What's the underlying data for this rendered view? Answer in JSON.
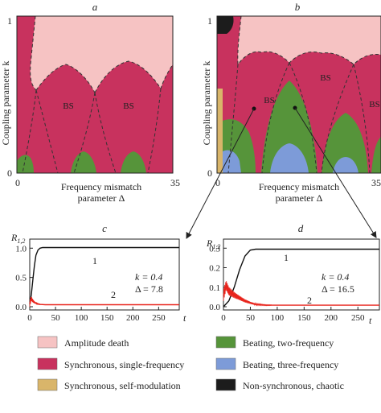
{
  "colors": {
    "amplitude_death": "#f6c3c3",
    "sync_single": "#c8325e",
    "sync_self_mod": "#d9b56a",
    "beating_two": "#56943a",
    "beating_three": "#7d9bd8",
    "non_sync_chaotic": "#1c1c1c",
    "curve_red": "#e8241c",
    "curve_black": "#111111"
  },
  "panel_a": {
    "letter": "a",
    "x_label_line1": "Frequency mismatch",
    "x_label_line2": "parameter Δ",
    "y_label": "Coupling parameter k",
    "x_tick_min": "0",
    "x_tick_max": "35",
    "y_tick_min": "0",
    "y_tick_max": "1",
    "region_labels": [
      "BS",
      "BS"
    ]
  },
  "panel_b": {
    "letter": "b",
    "x_label_line1": "Frequency mismatch",
    "x_label_line2": "parameter Δ",
    "y_label": "Coupling parameter k",
    "x_tick_min": "0",
    "x_tick_max": "35",
    "y_tick_min": "0",
    "y_tick_max": "1",
    "region_labels": [
      "BS",
      "BS",
      "BS"
    ]
  },
  "panel_c": {
    "letter": "c",
    "y_label": "R",
    "y_label_sub": "1,2",
    "x_label": "t",
    "y_ticks": [
      "1.0",
      "0.5",
      "0.0"
    ],
    "x_ticks": [
      "0",
      "50",
      "100",
      "150",
      "200",
      "250"
    ],
    "curve_labels": [
      "1",
      "2"
    ],
    "param_k": "k = 0.4",
    "param_delta": "Δ = 7.8"
  },
  "panel_d": {
    "letter": "d",
    "y_label": "R",
    "y_label_sub": "1,2",
    "x_label": "t",
    "y_ticks": [
      "0.3",
      "0.2",
      "0.1",
      "0.0"
    ],
    "x_ticks": [
      "0",
      "50",
      "100",
      "150",
      "200",
      "250"
    ],
    "curve_labels": [
      "1",
      "2"
    ],
    "param_k": "k = 0.4",
    "param_delta": "Δ = 16.5"
  },
  "legend": [
    {
      "label": "Amplitude death",
      "color": "#f6c3c3"
    },
    {
      "label": "Synchronous, single-frequency",
      "color": "#c8325e"
    },
    {
      "label": "Synchronous, self-modulation",
      "color": "#d9b56a"
    },
    {
      "label": "Beating, two-frequency",
      "color": "#56943a"
    },
    {
      "label": "Beating, three-frequency",
      "color": "#7d9bd8"
    },
    {
      "label": "Non-synchronous, chaotic",
      "color": "#1c1c1c"
    }
  ],
  "chart_data": [
    {
      "type": "line",
      "panel": "c",
      "xlabel": "t",
      "ylabel": "R1,2",
      "xlim": [
        0,
        290
      ],
      "ylim": [
        0,
        1.1
      ],
      "series": [
        {
          "name": "1",
          "x": [
            0,
            3,
            6,
            9,
            12,
            16,
            20,
            25,
            30,
            290
          ],
          "y": [
            0.05,
            0.2,
            0.45,
            0.7,
            0.88,
            0.97,
            1.0,
            1.01,
            1.01,
            1.01
          ]
        },
        {
          "name": "2",
          "x": [
            0,
            3,
            6,
            10,
            15,
            20,
            30,
            290
          ],
          "y": [
            0.05,
            0.14,
            0.1,
            0.07,
            0.05,
            0.04,
            0.035,
            0.035
          ]
        }
      ]
    },
    {
      "type": "line",
      "panel": "d",
      "xlabel": "t",
      "ylabel": "R1,2",
      "xlim": [
        0,
        290
      ],
      "ylim": [
        0,
        0.33
      ],
      "series": [
        {
          "name": "1",
          "x": [
            0,
            10,
            20,
            30,
            40,
            50,
            60,
            70,
            290
          ],
          "y": [
            0.0,
            0.03,
            0.1,
            0.19,
            0.26,
            0.29,
            0.295,
            0.295,
            0.295
          ]
        },
        {
          "name": "2",
          "x": [
            0,
            5,
            10,
            20,
            30,
            40,
            50,
            60,
            80,
            290
          ],
          "y": [
            0.06,
            0.11,
            0.08,
            0.06,
            0.045,
            0.03,
            0.02,
            0.012,
            0.008,
            0.008
          ]
        }
      ]
    }
  ]
}
